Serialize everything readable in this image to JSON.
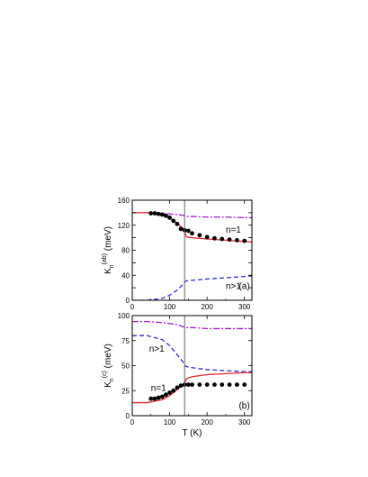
{
  "colors": {
    "measured": "#000000",
    "n1_curve": "#e8262b",
    "n_gt1_curve": "#2a2ad6",
    "total_curve": "#a020c8",
    "vertical_line": "#666666"
  },
  "chart_data": [
    {
      "type": "line",
      "panel_label": "(a)",
      "xlabel": "",
      "ylabel": "K",
      "ylabel_sub": "n",
      "ylabel_sup": "(ab)",
      "ylabel_unit": " (meV)",
      "xlim": [
        0,
        320
      ],
      "ylim": [
        0,
        160
      ],
      "xticks": [
        0,
        100,
        200,
        300
      ],
      "yticks": [
        0,
        20,
        40,
        60,
        80,
        100,
        120,
        140,
        160
      ],
      "ytick_labels": [
        "0",
        "",
        "40",
        "",
        "80",
        "",
        "120",
        "",
        "160"
      ],
      "vertical_line_x": 140,
      "annotations": [
        {
          "text": "n=1",
          "x": 250,
          "y": 108
        },
        {
          "text": "n>1",
          "x": 250,
          "y": 18
        },
        {
          "text": "(a)",
          "x": 285,
          "y": 18
        }
      ],
      "series": [
        {
          "role": "n1_curve",
          "style": "solid",
          "x": [
            0,
            40,
            80,
            100,
            120,
            135,
            140,
            145,
            160,
            200,
            250,
            300,
            320
          ],
          "y": [
            140,
            140,
            137,
            132,
            123,
            115,
            110,
            101,
            100,
            98,
            96,
            94,
            93
          ]
        },
        {
          "role": "n_gt1_curve",
          "style": "dashed",
          "x": [
            0,
            40,
            80,
            100,
            120,
            135,
            140,
            145,
            160,
            200,
            250,
            300,
            320
          ],
          "y": [
            0,
            0,
            3,
            8,
            16,
            25,
            29,
            31,
            32,
            34,
            36,
            38,
            39
          ]
        },
        {
          "role": "total_curve",
          "style": "dashdot",
          "x": [
            0,
            40,
            80,
            100,
            120,
            135,
            140,
            145,
            160,
            200,
            250,
            300,
            320
          ],
          "y": [
            140,
            140,
            139,
            138,
            137,
            136,
            135,
            134,
            134,
            133,
            133,
            132,
            132
          ]
        },
        {
          "role": "measured",
          "style": "points",
          "x": [
            50,
            60,
            70,
            80,
            90,
            100,
            110,
            120,
            130,
            140,
            150,
            160,
            180,
            200,
            220,
            240,
            260,
            280,
            300
          ],
          "y": [
            139,
            139,
            138,
            137,
            135,
            132,
            127,
            122,
            114,
            112,
            111,
            107,
            104,
            101,
            99,
            98,
            97,
            96,
            95
          ]
        }
      ]
    },
    {
      "type": "line",
      "panel_label": "(b)",
      "xlabel": "T (K)",
      "ylabel": "K",
      "ylabel_sub": "n",
      "ylabel_sup": "(c)",
      "ylabel_unit": " (meV)",
      "xlim": [
        0,
        320
      ],
      "ylim": [
        0,
        100
      ],
      "xticks": [
        0,
        100,
        200,
        300
      ],
      "yticks": [
        0,
        25,
        50,
        75,
        100
      ],
      "ytick_labels": [
        "0",
        "25",
        "50",
        "75",
        "100"
      ],
      "vertical_line_x": 140,
      "annotations": [
        {
          "text": "n>1",
          "x": 45,
          "y": 64
        },
        {
          "text": "n=1",
          "x": 50,
          "y": 25
        },
        {
          "text": "(b)",
          "x": 285,
          "y": 7
        }
      ],
      "series": [
        {
          "role": "n1_curve",
          "style": "solid",
          "x": [
            0,
            40,
            80,
            100,
            120,
            135,
            140,
            145,
            160,
            200,
            250,
            300,
            320
          ],
          "y": [
            13,
            13,
            16,
            20,
            26,
            31,
            33,
            37,
            39,
            41,
            42,
            43,
            43
          ]
        },
        {
          "role": "n_gt1_curve",
          "style": "dashed",
          "x": [
            0,
            40,
            80,
            100,
            120,
            135,
            140,
            145,
            160,
            200,
            250,
            300,
            320
          ],
          "y": [
            80,
            80,
            76,
            70,
            61,
            54,
            50,
            49,
            48,
            46,
            45,
            44,
            44
          ]
        },
        {
          "role": "total_curve",
          "style": "dashdot",
          "x": [
            0,
            40,
            80,
            100,
            120,
            135,
            140,
            145,
            160,
            200,
            250,
            300,
            320
          ],
          "y": [
            94,
            94,
            93,
            92,
            91,
            89,
            88,
            88,
            88,
            87,
            87,
            87,
            87
          ]
        },
        {
          "role": "measured",
          "style": "points",
          "x": [
            50,
            60,
            70,
            80,
            90,
            100,
            110,
            120,
            130,
            140,
            150,
            160,
            180,
            200,
            220,
            240,
            260,
            280,
            300
          ],
          "y": [
            17,
            17,
            18,
            19,
            21,
            23,
            25,
            28,
            30,
            31,
            31,
            31,
            31,
            31,
            31,
            31,
            31,
            31,
            31
          ]
        }
      ]
    }
  ]
}
